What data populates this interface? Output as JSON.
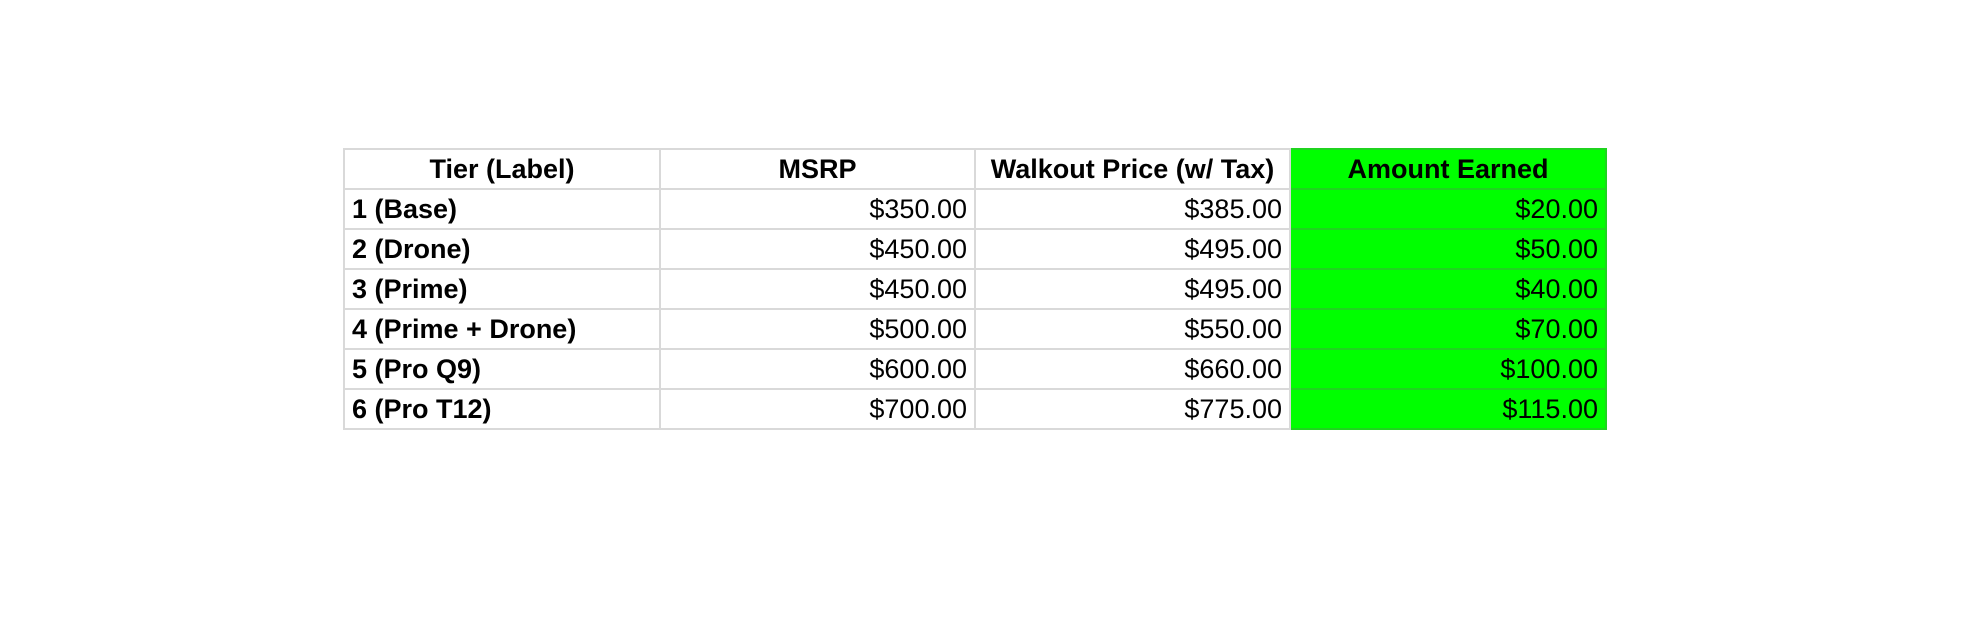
{
  "table": {
    "headers": [
      "Tier (Label)",
      "MSRP",
      "Walkout Price (w/ Tax)",
      "Amount Earned"
    ],
    "rows": [
      {
        "tier": "1 (Base)",
        "msrp": "$350.00",
        "walkout": "$385.00",
        "earned": "$20.00"
      },
      {
        "tier": "2 (Drone)",
        "msrp": "$450.00",
        "walkout": "$495.00",
        "earned": "$50.00"
      },
      {
        "tier": "3 (Prime)",
        "msrp": "$450.00",
        "walkout": "$495.00",
        "earned": "$40.00"
      },
      {
        "tier": "4 (Prime + Drone)",
        "msrp": "$500.00",
        "walkout": "$550.00",
        "earned": "$70.00"
      },
      {
        "tier": "5 (Pro Q9)",
        "msrp": "$600.00",
        "walkout": "$660.00",
        "earned": "$100.00"
      },
      {
        "tier": "6 (Pro T12)",
        "msrp": "$700.00",
        "walkout": "$775.00",
        "earned": "$115.00"
      }
    ]
  },
  "colors": {
    "highlight": "#00ff00",
    "gridline": "#d9d9d9"
  }
}
